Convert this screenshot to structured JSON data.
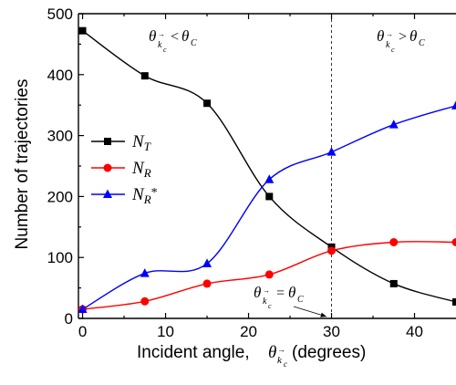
{
  "chart_data": {
    "type": "line",
    "xlabel": "Incident angle,",
    "xlabel_unit": "(degrees)",
    "ylabel": "Number of trajectories",
    "xlim": [
      -0.5,
      45
    ],
    "ylim": [
      0,
      500
    ],
    "x_ticks": [
      0,
      10,
      20,
      30,
      40
    ],
    "y_ticks": [
      0,
      100,
      200,
      300,
      400,
      500
    ],
    "grid": false,
    "legend_position": "middle-left",
    "x": [
      0,
      7.5,
      15,
      22.5,
      30,
      37.5,
      45
    ],
    "series": [
      {
        "name": "N_T",
        "label_main": "N",
        "label_sub": "T",
        "label_sup": "",
        "color": "#000000",
        "marker": "square",
        "values": [
          472,
          398,
          353,
          200,
          117,
          57,
          27
        ]
      },
      {
        "name": "N_R",
        "label_main": "N",
        "label_sub": "R",
        "label_sup": "",
        "color": "#ff0000",
        "marker": "circle",
        "values": [
          15,
          28,
          57,
          72,
          111,
          125,
          125
        ]
      },
      {
        "name": "N_R*",
        "label_main": "N",
        "label_sub": "R",
        "label_sup": "*",
        "color": "#0000ff",
        "marker": "triangle",
        "values": [
          15,
          74,
          90,
          228,
          273,
          318,
          349
        ]
      }
    ],
    "reference_line": {
      "x": 30
    },
    "annotations": {
      "left_region": "θ_k_c < θ_C",
      "right_region": "θ_k_c > θ_C",
      "critical": "θ_k_c = θ_C"
    }
  }
}
